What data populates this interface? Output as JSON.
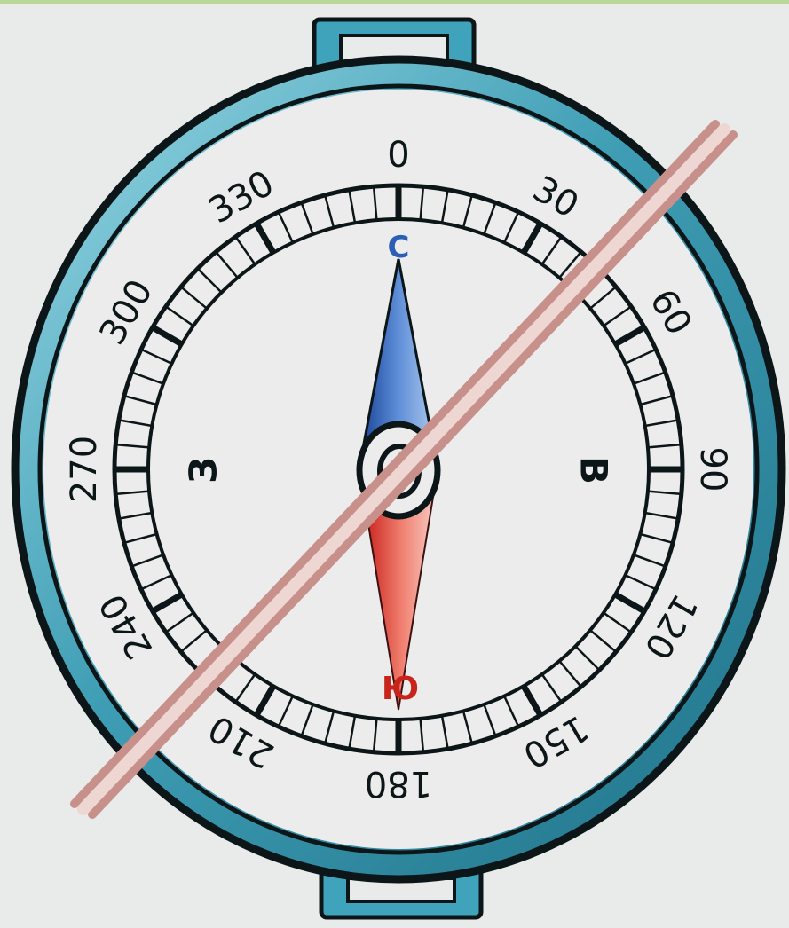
{
  "compass": {
    "degree_labels": [
      "0",
      "30",
      "60",
      "90",
      "120",
      "150",
      "180",
      "210",
      "240",
      "270",
      "300",
      "330"
    ],
    "cardinals": {
      "north": "С",
      "east": "В",
      "south": "Ю",
      "west": "З"
    },
    "colors": {
      "frame": "#2f8fa6",
      "frame_highlight": "#8fd2e2",
      "outline": "#0c1618",
      "dial": "#ececec",
      "needle_north": "#2a5fb5",
      "needle_south": "#d8322a",
      "north_letter": "#2a5fb5",
      "south_letter": "#c8241c",
      "rod": "#e8c8c4"
    },
    "icons": [
      "compass-needle",
      "sighting-rod",
      "lid-hinge",
      "lid-latch"
    ]
  }
}
